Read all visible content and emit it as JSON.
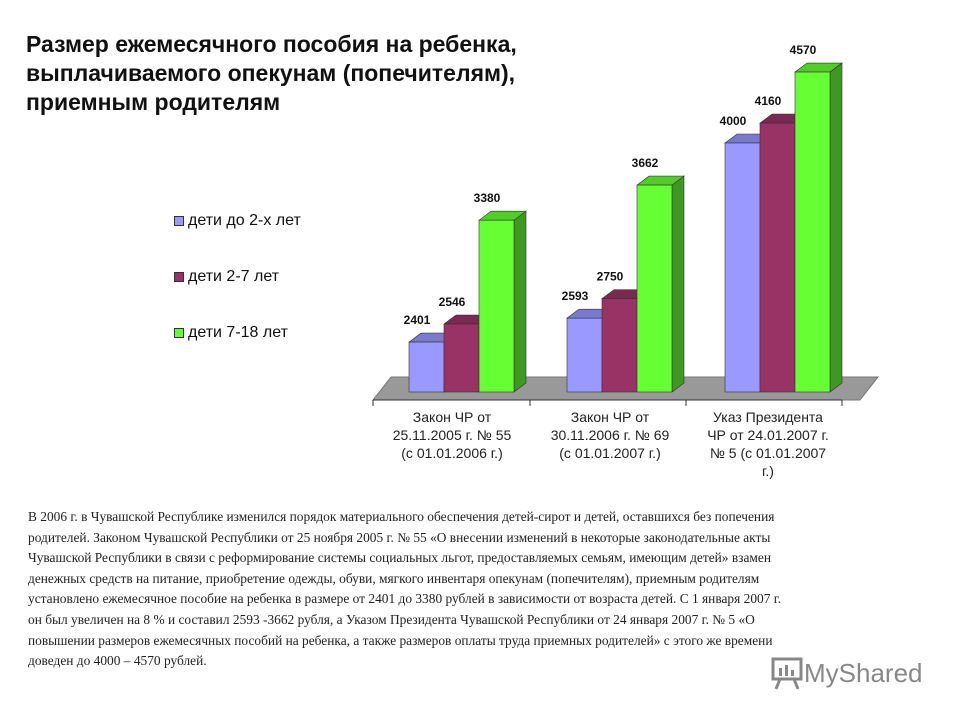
{
  "title_lines": [
    "Размер ежемесячного пособия на ребенка,",
    "выплачиваемого опекунам (попечителям),",
    "приемным родителям"
  ],
  "chart_data": {
    "type": "bar",
    "style": "3d-clustered",
    "categories": [
      "Закон ЧР от 25.11.2005 г. № 55 (с 01.01.2006 г.)",
      "Закон ЧР от 30.11.2006 г. № 69 (с 01.01.2007 г.)",
      "Указ Президента ЧР от 24.01.2007 г. № 5 (с 01.01.2007 г.)"
    ],
    "category_lines": [
      [
        "Закон ЧР от",
        "25.11.2005 г. № 55",
        "(с 01.01.2006 г.)"
      ],
      [
        "Закон ЧР от",
        "30.11.2006 г. № 69",
        "(с 01.01.2007 г.)"
      ],
      [
        "Указ Президента",
        "ЧР от 24.01.2007 г.",
        "№ 5 (с 01.01.2007",
        "г.)"
      ]
    ],
    "series": [
      {
        "name": "дети до 2-х лет",
        "values": [
          2401,
          2593,
          4000
        ],
        "color": "#9999ff"
      },
      {
        "name": "дети 2-7 лет",
        "values": [
          2546,
          2750,
          4160
        ],
        "color": "#993366"
      },
      {
        "name": "дети 7-18 лет",
        "values": [
          3380,
          3662,
          4570
        ],
        "color": "#66ff33"
      }
    ],
    "ylim": [
      2000,
      4700
    ],
    "grid": false,
    "legend": "left",
    "data_labels": true,
    "floor_color": "#999999"
  },
  "paragraph_lines": [
    "В 2006 г. в Чувашской Республике изменился порядок материального обеспечения детей-сирот и детей, оставшихся без попечения",
    "родителей. Законом Чувашской Республики от 25 ноября 2005 г. № 55 «О внесении изменений в некоторые законодательные акты",
    "Чувашской Республики в связи с реформирование системы социальных льгот, предоставляемых семьям, имеющим детей» взамен",
    "денежных средств на питание, приобретение одежды, обуви, мягкого инвентаря опекунам (попечителям), приемным родителям",
    "установлено ежемесячное пособие на ребенка в размере от 2401 до 3380 рублей в зависимости от возраста детей. С 1 января 2007 г.",
    "он был увеличен на 8 % и составил 2593 -3662 рубля, а Указом Президента Чувашской Республики от 24 января 2007 г. № 5 «О",
    "повышении размеров ежемесячных пособий на ребенка, а также размеров оплаты труда приемных родителей» с этого же времени",
    "доведен до 4000 – 4570 рублей."
  ],
  "watermark": "MyShared"
}
